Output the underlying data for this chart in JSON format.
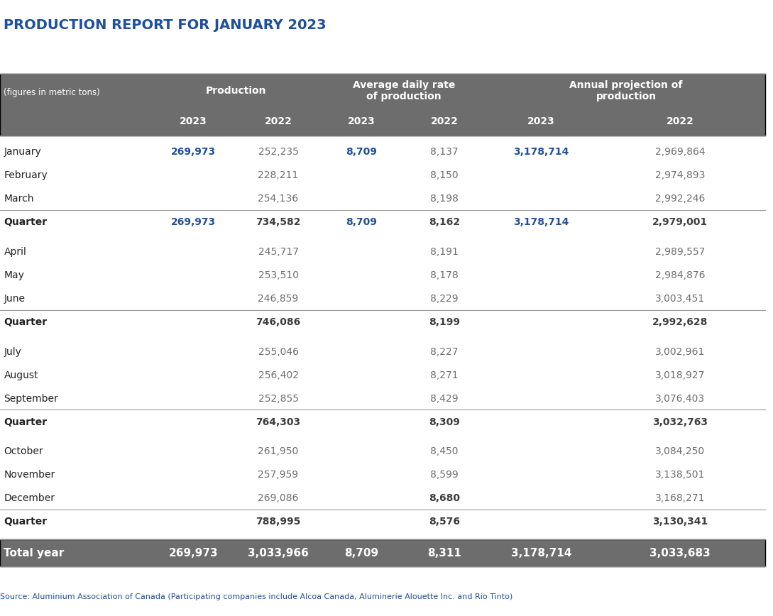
{
  "title": "PRODUCTION REPORT FOR JANUARY 2023",
  "source": "Source: Aluminium Association of Canada (Participating companies include Alcoa Canada, Aluminerie Alouette Inc. and Rio Tinto)",
  "header_bg": "#6d6d6d",
  "header_text": "#ffffff",
  "total_bg": "#6d6d6d",
  "total_text": "#ffffff",
  "quarter_text": "#3d3d3d",
  "blue_text": "#1f4e9c",
  "gray_text": "#6d6d6d",
  "col_groups": [
    "Production",
    "Average daily rate\nof production",
    "Annual projection of\nproduction"
  ],
  "col_years": [
    "2023",
    "2022",
    "2023",
    "2022",
    "2023",
    "2022"
  ],
  "row_label_col": "(figures in metric tons)",
  "rows": [
    {
      "label": "January",
      "q": 1,
      "bold_label": false,
      "is_quarter": false,
      "data": [
        "269,973",
        "252,235",
        "8,709",
        "8,137",
        "3,178,714",
        "2,969,864"
      ]
    },
    {
      "label": "February",
      "q": 1,
      "bold_label": false,
      "is_quarter": false,
      "data": [
        "",
        "228,211",
        "",
        "8,150",
        "",
        "2,974,893"
      ]
    },
    {
      "label": "March",
      "q": 1,
      "bold_label": false,
      "is_quarter": false,
      "data": [
        "",
        "254,136",
        "",
        "8,198",
        "",
        "2,992,246"
      ]
    },
    {
      "label": "Quarter",
      "q": 1,
      "bold_label": true,
      "is_quarter": true,
      "data": [
        "269,973",
        "734,582",
        "8,709",
        "8,162",
        "3,178,714",
        "2,979,001"
      ]
    },
    {
      "label": "April",
      "q": 2,
      "bold_label": false,
      "is_quarter": false,
      "data": [
        "",
        "245,717",
        "",
        "8,191",
        "",
        "2,989,557"
      ]
    },
    {
      "label": "May",
      "q": 2,
      "bold_label": false,
      "is_quarter": false,
      "data": [
        "",
        "253,510",
        "",
        "8,178",
        "",
        "2,984,876"
      ]
    },
    {
      "label": "June",
      "q": 2,
      "bold_label": false,
      "is_quarter": false,
      "data": [
        "",
        "246,859",
        "",
        "8,229",
        "",
        "3,003,451"
      ]
    },
    {
      "label": "Quarter",
      "q": 2,
      "bold_label": true,
      "is_quarter": true,
      "data": [
        "",
        "746,086",
        "",
        "8,199",
        "",
        "2,992,628"
      ]
    },
    {
      "label": "July",
      "q": 3,
      "bold_label": false,
      "is_quarter": false,
      "data": [
        "",
        "255,046",
        "",
        "8,227",
        "",
        "3,002,961"
      ]
    },
    {
      "label": "August",
      "q": 3,
      "bold_label": false,
      "is_quarter": false,
      "data": [
        "",
        "256,402",
        "",
        "8,271",
        "",
        "3,018,927"
      ]
    },
    {
      "label": "September",
      "q": 3,
      "bold_label": false,
      "is_quarter": false,
      "data": [
        "",
        "252,855",
        "",
        "8,429",
        "",
        "3,076,403"
      ]
    },
    {
      "label": "Quarter",
      "q": 3,
      "bold_label": true,
      "is_quarter": true,
      "data": [
        "",
        "764,303",
        "",
        "8,309",
        "",
        "3,032,763"
      ]
    },
    {
      "label": "October",
      "q": 4,
      "bold_label": false,
      "is_quarter": false,
      "data": [
        "",
        "261,950",
        "",
        "8,450",
        "",
        "3,084,250"
      ]
    },
    {
      "label": "November",
      "q": 4,
      "bold_label": false,
      "is_quarter": false,
      "data": [
        "",
        "257,959",
        "",
        "8,599",
        "",
        "3,138,501"
      ]
    },
    {
      "label": "December",
      "q": 4,
      "bold_label": false,
      "is_quarter": false,
      "data": [
        "",
        "269,086",
        "",
        "8,680",
        "",
        "3,168,271"
      ]
    },
    {
      "label": "Quarter",
      "q": 4,
      "bold_label": true,
      "is_quarter": true,
      "data": [
        "",
        "788,995",
        "",
        "8,576",
        "",
        "3,130,341"
      ]
    }
  ],
  "total_row": {
    "label": "Total year",
    "data": [
      "269,973",
      "3,033,966",
      "8,709",
      "8,311",
      "3,178,714",
      "3,033,683"
    ]
  },
  "figsize": [
    10.89,
    8.68
  ],
  "dpi": 100
}
